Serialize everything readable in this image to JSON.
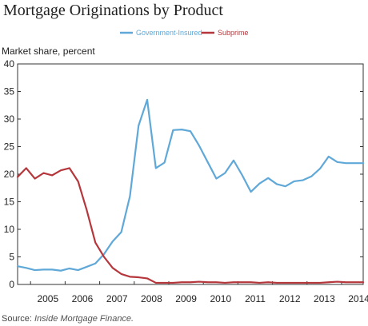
{
  "chart_data": {
    "type": "line",
    "title": "Mortgage Originations by Product",
    "ylabel": "Market share, percent",
    "xlabel": "",
    "ylim": [
      0,
      40
    ],
    "yticks": [
      0,
      5,
      10,
      15,
      20,
      25,
      30,
      35,
      40
    ],
    "xlim": [
      2004.625,
      2014.625
    ],
    "xtick_labels": [
      "2005",
      "2006",
      "2007",
      "2008",
      "2009",
      "2010",
      "2011",
      "2012",
      "2013",
      "2014"
    ],
    "grid": false,
    "legend_position": "top-center",
    "series": [
      {
        "name": "Government-Insured",
        "color": "#5fa8d8",
        "x": [
          2004.625,
          2004.875,
          2005.125,
          2005.375,
          2005.625,
          2005.875,
          2006.125,
          2006.375,
          2006.625,
          2006.875,
          2007.125,
          2007.375,
          2007.625,
          2007.875,
          2008.125,
          2008.375,
          2008.625,
          2008.875,
          2009.125,
          2009.375,
          2009.625,
          2009.875,
          2010.125,
          2010.375,
          2010.625,
          2010.875,
          2011.125,
          2011.375,
          2011.625,
          2011.875,
          2012.125,
          2012.375,
          2012.625,
          2012.875,
          2013.125,
          2013.375,
          2013.625,
          2013.875,
          2014.125,
          2014.375,
          2014.625
        ],
        "values": [
          3.3,
          3.0,
          2.6,
          2.7,
          2.7,
          2.5,
          2.9,
          2.6,
          3.2,
          3.8,
          5.5,
          7.8,
          9.5,
          16.0,
          28.8,
          33.5,
          21.1,
          22.1,
          28.0,
          28.1,
          27.8,
          25.2,
          22.2,
          19.2,
          20.2,
          22.5,
          19.8,
          16.8,
          18.3,
          19.3,
          18.2,
          17.8,
          18.7,
          18.9,
          19.6,
          21.0,
          23.2,
          22.2,
          22.0,
          22.0,
          22.0
        ]
      },
      {
        "name": "Subprime",
        "color": "#b5373c",
        "x": [
          2004.625,
          2004.875,
          2005.125,
          2005.375,
          2005.625,
          2005.875,
          2006.125,
          2006.375,
          2006.625,
          2006.875,
          2007.125,
          2007.375,
          2007.625,
          2007.875,
          2008.125,
          2008.375,
          2008.625,
          2008.875,
          2009.125,
          2009.375,
          2009.625,
          2009.875,
          2010.125,
          2010.375,
          2010.625,
          2010.875,
          2011.125,
          2011.375,
          2011.625,
          2011.875,
          2012.125,
          2012.375,
          2012.625,
          2012.875,
          2013.125,
          2013.375,
          2013.625,
          2013.875,
          2014.125,
          2014.375,
          2014.625
        ],
        "values": [
          19.5,
          21.1,
          19.2,
          20.2,
          19.8,
          20.7,
          21.1,
          18.7,
          13.5,
          7.6,
          5.0,
          3.0,
          1.9,
          1.4,
          1.3,
          1.1,
          0.3,
          0.3,
          0.3,
          0.4,
          0.4,
          0.5,
          0.4,
          0.4,
          0.3,
          0.4,
          0.4,
          0.4,
          0.3,
          0.4,
          0.3,
          0.3,
          0.3,
          0.3,
          0.3,
          0.3,
          0.4,
          0.5,
          0.4,
          0.4,
          0.4
        ]
      }
    ]
  },
  "source": {
    "label": "Source:",
    "text": "Inside Mortgage Finance."
  }
}
